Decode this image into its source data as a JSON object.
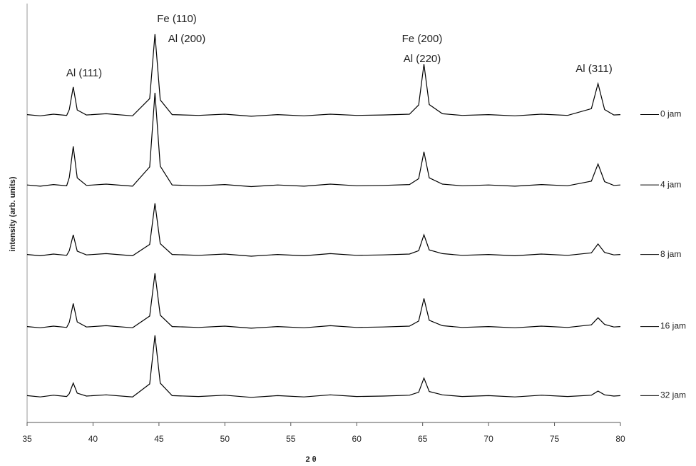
{
  "chart_data": {
    "type": "line",
    "x_label": "2 θ",
    "y_label": "intensity (arb. units)",
    "xlim": [
      35,
      80
    ],
    "xticks": [
      35,
      40,
      45,
      50,
      55,
      60,
      65,
      70,
      75,
      80
    ],
    "ylim": [
      0,
      100
    ],
    "annotations": [
      "Al (111)",
      "Fe (110)",
      "Al (200)",
      "Fe (200)",
      "Al (220)",
      "Al (311)"
    ],
    "x": [
      35,
      36,
      37,
      38,
      38.2,
      38.5,
      38.8,
      39.5,
      41,
      43,
      44.3,
      44.7,
      45.1,
      46,
      48,
      50,
      52,
      54,
      56,
      58,
      60,
      62,
      64,
      64.7,
      65.1,
      65.5,
      66.5,
      68,
      70,
      72,
      74,
      76,
      77.8,
      78.3,
      78.8,
      79.5,
      80
    ],
    "series": [
      {
        "name": "0 jam",
        "color": "#000000",
        "values": [
          73.5,
          73.2,
          73.6,
          73.3,
          74.7,
          80.1,
          74.6,
          73.4,
          73.7,
          73.2,
          77.3,
          92.7,
          77.0,
          73.5,
          73.3,
          73.6,
          73.1,
          73.5,
          73.2,
          73.6,
          73.3,
          73.4,
          73.6,
          75.8,
          85.5,
          75.9,
          73.7,
          73.3,
          73.5,
          73.2,
          73.6,
          73.3,
          74.9,
          80.9,
          74.7,
          73.4,
          73.5
        ]
      },
      {
        "name": "4 jam",
        "color": "#000000",
        "values": [
          56.7,
          56.4,
          56.8,
          56.5,
          58.5,
          65.9,
          58.4,
          56.6,
          56.9,
          56.4,
          61.0,
          78.7,
          61.2,
          56.7,
          56.5,
          56.8,
          56.3,
          56.7,
          56.4,
          56.9,
          56.5,
          56.6,
          56.8,
          58.2,
          64.6,
          58.4,
          56.9,
          56.5,
          56.7,
          56.4,
          56.8,
          56.5,
          57.6,
          61.7,
          57.5,
          56.6,
          56.7
        ]
      },
      {
        "name": "8 jam",
        "color": "#000000",
        "values": [
          40.1,
          39.8,
          40.2,
          39.9,
          41.0,
          44.8,
          40.9,
          40.0,
          40.3,
          39.8,
          42.5,
          52.3,
          42.7,
          40.1,
          39.9,
          40.2,
          39.7,
          40.1,
          39.8,
          40.3,
          39.9,
          40.0,
          40.2,
          41.0,
          44.8,
          41.2,
          40.3,
          39.9,
          40.1,
          39.8,
          40.2,
          39.9,
          40.5,
          42.6,
          40.6,
          40.0,
          40.1
        ]
      },
      {
        "name": "16 jam",
        "color": "#000000",
        "values": [
          22.9,
          22.6,
          23.0,
          22.7,
          23.9,
          28.4,
          24.0,
          22.8,
          23.1,
          22.6,
          25.4,
          35.6,
          25.6,
          22.9,
          22.7,
          23.0,
          22.5,
          22.9,
          22.6,
          23.1,
          22.7,
          22.8,
          23.0,
          24.2,
          29.6,
          24.4,
          23.1,
          22.7,
          22.9,
          22.6,
          23.0,
          22.7,
          23.3,
          25.0,
          23.4,
          22.8,
          22.9
        ]
      },
      {
        "name": "32 jam",
        "color": "#000000",
        "values": [
          6.4,
          6.1,
          6.5,
          6.2,
          6.9,
          9.4,
          7.0,
          6.3,
          6.6,
          6.1,
          9.2,
          20.8,
          9.4,
          6.4,
          6.2,
          6.5,
          6.0,
          6.4,
          6.1,
          6.6,
          6.2,
          6.3,
          6.5,
          7.2,
          10.6,
          7.4,
          6.6,
          6.2,
          6.4,
          6.1,
          6.5,
          6.2,
          6.5,
          7.5,
          6.6,
          6.3,
          6.4
        ]
      }
    ]
  }
}
